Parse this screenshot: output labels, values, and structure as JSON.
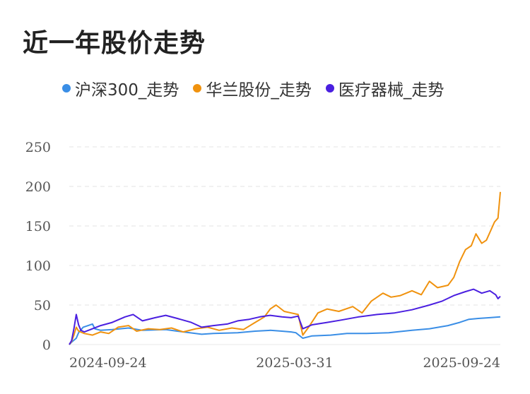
{
  "title": "近一年股价走势",
  "chart_data": {
    "type": "line",
    "title": "近一年股价走势",
    "xlabel": "",
    "ylabel": "",
    "ylim": [
      0,
      250
    ],
    "y_ticks": [
      0,
      50,
      100,
      150,
      200,
      250
    ],
    "x_range": [
      "2024-09-18",
      "2025-09-24"
    ],
    "x_ticks": [
      "2024-09-24",
      "2025-03-31",
      "2025-09-24"
    ],
    "grid": "horizontal-dashed",
    "legend_position": "top-left",
    "series": [
      {
        "name": "沪深300_走势",
        "color": "#3a8ee6",
        "points": [
          [
            "2024-09-18",
            0
          ],
          [
            "2024-09-20",
            3
          ],
          [
            "2024-09-24",
            8
          ],
          [
            "2024-09-26",
            15
          ],
          [
            "2024-09-30",
            22
          ],
          [
            "2024-10-08",
            26
          ],
          [
            "2024-10-10",
            20
          ],
          [
            "2024-10-15",
            18
          ],
          [
            "2024-10-25",
            19
          ],
          [
            "2024-11-08",
            21
          ],
          [
            "2024-11-20",
            18
          ],
          [
            "2024-12-10",
            19
          ],
          [
            "2024-12-20",
            17
          ],
          [
            "2025-01-10",
            13
          ],
          [
            "2025-01-20",
            14
          ],
          [
            "2025-02-10",
            15
          ],
          [
            "2025-02-25",
            17
          ],
          [
            "2025-03-10",
            18
          ],
          [
            "2025-03-20",
            17
          ],
          [
            "2025-03-28",
            16
          ],
          [
            "2025-04-01",
            15
          ],
          [
            "2025-04-07",
            8
          ],
          [
            "2025-04-15",
            11
          ],
          [
            "2025-05-01",
            12
          ],
          [
            "2025-05-15",
            14
          ],
          [
            "2025-06-01",
            14
          ],
          [
            "2025-06-20",
            15
          ],
          [
            "2025-07-10",
            18
          ],
          [
            "2025-07-25",
            20
          ],
          [
            "2025-08-10",
            24
          ],
          [
            "2025-08-20",
            28
          ],
          [
            "2025-08-28",
            32
          ],
          [
            "2025-09-05",
            33
          ],
          [
            "2025-09-15",
            34
          ],
          [
            "2025-09-24",
            35
          ]
        ]
      },
      {
        "name": "华兰股份_走势",
        "color": "#f0920e",
        "points": [
          [
            "2024-09-18",
            0
          ],
          [
            "2024-09-20",
            4
          ],
          [
            "2024-09-22",
            12
          ],
          [
            "2024-09-24",
            22
          ],
          [
            "2024-09-26",
            17
          ],
          [
            "2024-10-01",
            14
          ],
          [
            "2024-10-08",
            12
          ],
          [
            "2024-10-15",
            16
          ],
          [
            "2024-10-22",
            14
          ],
          [
            "2024-10-30",
            22
          ],
          [
            "2024-11-08",
            24
          ],
          [
            "2024-11-15",
            17
          ],
          [
            "2024-11-25",
            20
          ],
          [
            "2024-12-05",
            19
          ],
          [
            "2024-12-15",
            21
          ],
          [
            "2024-12-25",
            16
          ],
          [
            "2025-01-05",
            20
          ],
          [
            "2025-01-15",
            22
          ],
          [
            "2025-01-25",
            18
          ],
          [
            "2025-02-05",
            21
          ],
          [
            "2025-02-15",
            19
          ],
          [
            "2025-02-25",
            28
          ],
          [
            "2025-03-05",
            35
          ],
          [
            "2025-03-10",
            45
          ],
          [
            "2025-03-15",
            50
          ],
          [
            "2025-03-22",
            42
          ],
          [
            "2025-03-28",
            40
          ],
          [
            "2025-04-03",
            38
          ],
          [
            "2025-04-07",
            12
          ],
          [
            "2025-04-12",
            22
          ],
          [
            "2025-04-20",
            40
          ],
          [
            "2025-04-28",
            45
          ],
          [
            "2025-05-08",
            42
          ],
          [
            "2025-05-20",
            48
          ],
          [
            "2025-05-28",
            40
          ],
          [
            "2025-06-05",
            55
          ],
          [
            "2025-06-15",
            65
          ],
          [
            "2025-06-22",
            60
          ],
          [
            "2025-06-30",
            62
          ],
          [
            "2025-07-10",
            68
          ],
          [
            "2025-07-18",
            63
          ],
          [
            "2025-07-25",
            80
          ],
          [
            "2025-08-01",
            72
          ],
          [
            "2025-08-10",
            75
          ],
          [
            "2025-08-15",
            85
          ],
          [
            "2025-08-20",
            105
          ],
          [
            "2025-08-25",
            120
          ],
          [
            "2025-08-30",
            125
          ],
          [
            "2025-09-03",
            140
          ],
          [
            "2025-09-08",
            128
          ],
          [
            "2025-09-12",
            132
          ],
          [
            "2025-09-16",
            145
          ],
          [
            "2025-09-19",
            155
          ],
          [
            "2025-09-22",
            160
          ],
          [
            "2025-09-24",
            193
          ]
        ]
      },
      {
        "name": "医疗器械_走势",
        "color": "#4a1fe0",
        "points": [
          [
            "2024-09-18",
            0
          ],
          [
            "2024-09-20",
            5
          ],
          [
            "2024-09-22",
            20
          ],
          [
            "2024-09-24",
            38
          ],
          [
            "2024-09-26",
            25
          ],
          [
            "2024-09-28",
            18
          ],
          [
            "2024-10-01",
            16
          ],
          [
            "2024-10-08",
            20
          ],
          [
            "2024-10-15",
            24
          ],
          [
            "2024-10-25",
            28
          ],
          [
            "2024-11-05",
            35
          ],
          [
            "2024-11-12",
            38
          ],
          [
            "2024-11-20",
            30
          ],
          [
            "2024-12-01",
            34
          ],
          [
            "2024-12-10",
            37
          ],
          [
            "2024-12-20",
            33
          ],
          [
            "2025-01-01",
            28
          ],
          [
            "2025-01-10",
            22
          ],
          [
            "2025-01-20",
            24
          ],
          [
            "2025-02-01",
            26
          ],
          [
            "2025-02-10",
            30
          ],
          [
            "2025-02-20",
            32
          ],
          [
            "2025-03-01",
            35
          ],
          [
            "2025-03-10",
            37
          ],
          [
            "2025-03-20",
            35
          ],
          [
            "2025-03-28",
            34
          ],
          [
            "2025-04-03",
            36
          ],
          [
            "2025-04-07",
            20
          ],
          [
            "2025-04-15",
            25
          ],
          [
            "2025-04-28",
            28
          ],
          [
            "2025-05-10",
            31
          ],
          [
            "2025-05-25",
            35
          ],
          [
            "2025-06-10",
            38
          ],
          [
            "2025-06-25",
            40
          ],
          [
            "2025-07-10",
            44
          ],
          [
            "2025-07-25",
            50
          ],
          [
            "2025-08-05",
            55
          ],
          [
            "2025-08-15",
            62
          ],
          [
            "2025-08-25",
            67
          ],
          [
            "2025-09-01",
            70
          ],
          [
            "2025-09-08",
            65
          ],
          [
            "2025-09-15",
            68
          ],
          [
            "2025-09-20",
            63
          ],
          [
            "2025-09-22",
            58
          ],
          [
            "2025-09-24",
            61
          ]
        ]
      }
    ]
  }
}
